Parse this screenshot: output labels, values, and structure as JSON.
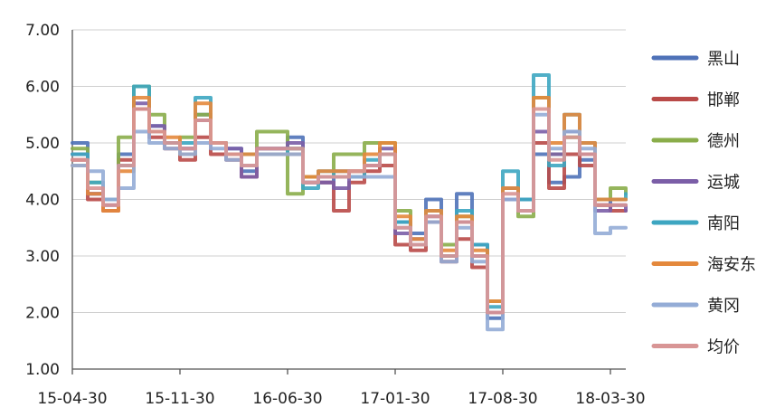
{
  "chart_data": {
    "type": "line",
    "title": "",
    "xlabel": "",
    "ylabel": "",
    "ylim": [
      1.0,
      7.0
    ],
    "yticks": [
      "1.00",
      "2.00",
      "3.00",
      "4.00",
      "5.00",
      "6.00",
      "7.00"
    ],
    "xticks": [
      "15-04-30",
      "15-11-30",
      "16-06-30",
      "17-01-30",
      "17-08-30",
      "18-03-30"
    ],
    "grid": "horizontal",
    "legend": "right",
    "x": [
      "15-04-30",
      "15-05-31",
      "15-06-30",
      "15-07-31",
      "15-08-31",
      "15-09-30",
      "15-10-31",
      "15-11-30",
      "15-12-31",
      "16-01-31",
      "16-02-29",
      "16-03-31",
      "16-04-30",
      "16-05-31",
      "16-06-30",
      "16-07-31",
      "16-08-31",
      "16-09-30",
      "16-10-31",
      "16-11-30",
      "16-12-31",
      "17-01-31",
      "17-02-28",
      "17-03-31",
      "17-04-30",
      "17-05-31",
      "17-06-30",
      "17-07-31",
      "17-08-31",
      "17-09-30",
      "17-10-31",
      "17-11-30",
      "17-12-31",
      "18-01-31",
      "18-02-28",
      "18-03-31",
      "18-04-30"
    ],
    "series": [
      {
        "name": "黑山",
        "color": "#4f72b8",
        "values": [
          5.0,
          4.1,
          4.0,
          4.8,
          5.6,
          5.3,
          5.0,
          4.9,
          5.5,
          5.0,
          4.9,
          4.5,
          4.9,
          4.9,
          5.1,
          4.4,
          4.3,
          4.5,
          4.4,
          4.6,
          4.8,
          3.6,
          3.4,
          4.0,
          3.0,
          4.1,
          3.2,
          1.9,
          4.2,
          4.0,
          4.8,
          4.3,
          4.4,
          4.7,
          3.9,
          4.0,
          4.0
        ]
      },
      {
        "name": "邯郸",
        "color": "#b94a48",
        "values": [
          4.7,
          4.0,
          3.8,
          4.7,
          5.6,
          5.1,
          4.9,
          4.7,
          5.1,
          4.8,
          4.7,
          4.4,
          4.8,
          4.8,
          4.9,
          4.3,
          4.3,
          3.8,
          4.3,
          4.5,
          4.6,
          3.2,
          3.1,
          3.6,
          2.9,
          3.3,
          2.8,
          2.0,
          4.0,
          3.8,
          5.0,
          4.2,
          4.8,
          4.6,
          3.9,
          3.8,
          3.8
        ]
      },
      {
        "name": "德州",
        "color": "#8aad4a",
        "values": [
          4.9,
          4.3,
          4.0,
          5.1,
          6.0,
          5.5,
          5.0,
          5.1,
          5.5,
          5.0,
          4.8,
          4.8,
          5.2,
          5.2,
          4.1,
          4.4,
          4.4,
          4.8,
          4.8,
          5.0,
          5.0,
          3.8,
          3.2,
          3.8,
          3.2,
          3.7,
          3.0,
          2.2,
          4.0,
          3.7,
          5.8,
          4.8,
          5.1,
          4.8,
          4.0,
          4.2,
          4.1
        ]
      },
      {
        "name": "运城",
        "color": "#7b5ea7",
        "values": [
          4.8,
          4.1,
          3.9,
          4.6,
          5.7,
          5.3,
          5.0,
          4.9,
          5.4,
          5.0,
          4.9,
          4.4,
          4.9,
          4.9,
          5.0,
          4.3,
          4.3,
          4.2,
          4.5,
          4.6,
          4.9,
          3.4,
          3.3,
          3.7,
          3.0,
          3.6,
          3.0,
          2.0,
          4.0,
          3.8,
          5.2,
          4.8,
          5.2,
          4.8,
          3.8,
          3.9,
          3.8
        ]
      },
      {
        "name": "南阳",
        "color": "#3da6c1",
        "values": [
          4.8,
          4.3,
          4.0,
          4.6,
          6.0,
          5.2,
          5.0,
          5.0,
          5.8,
          5.0,
          4.8,
          4.8,
          4.8,
          4.8,
          4.9,
          4.2,
          4.5,
          4.4,
          4.4,
          4.7,
          4.8,
          3.6,
          3.2,
          3.8,
          3.0,
          3.8,
          3.2,
          2.1,
          4.5,
          4.0,
          6.2,
          4.6,
          5.5,
          5.0,
          4.0,
          4.0,
          4.1
        ]
      },
      {
        "name": "海安东",
        "color": "#e4883c",
        "values": [
          4.6,
          4.1,
          3.8,
          4.5,
          5.8,
          5.2,
          5.1,
          4.8,
          5.7,
          5.0,
          4.8,
          4.8,
          4.8,
          4.8,
          4.8,
          4.4,
          4.5,
          4.5,
          4.5,
          4.8,
          5.0,
          3.7,
          3.3,
          3.8,
          3.1,
          3.7,
          3.1,
          2.2,
          4.2,
          3.8,
          5.8,
          5.0,
          5.5,
          5.0,
          4.0,
          4.0,
          4.0
        ]
      },
      {
        "name": "黄冈",
        "color": "#94acd6",
        "values": [
          4.6,
          4.5,
          4.0,
          4.2,
          5.2,
          5.0,
          4.9,
          4.8,
          5.0,
          4.9,
          4.7,
          4.6,
          4.8,
          4.8,
          4.8,
          4.3,
          4.4,
          4.4,
          4.4,
          4.4,
          4.4,
          3.5,
          3.2,
          3.6,
          2.9,
          3.5,
          2.9,
          1.7,
          4.0,
          3.8,
          5.5,
          4.9,
          5.2,
          4.9,
          3.4,
          3.5,
          3.5
        ]
      },
      {
        "name": "均价",
        "color": "#d89595",
        "values": [
          4.7,
          4.2,
          3.9,
          4.6,
          5.6,
          5.2,
          5.0,
          4.9,
          5.4,
          5.0,
          4.8,
          4.6,
          4.9,
          4.9,
          4.9,
          4.3,
          4.4,
          4.4,
          4.5,
          4.6,
          4.8,
          3.5,
          3.2,
          3.7,
          3.0,
          3.6,
          3.0,
          2.0,
          4.1,
          3.8,
          5.6,
          4.7,
          5.1,
          4.8,
          3.9,
          3.9,
          3.9
        ]
      }
    ]
  }
}
